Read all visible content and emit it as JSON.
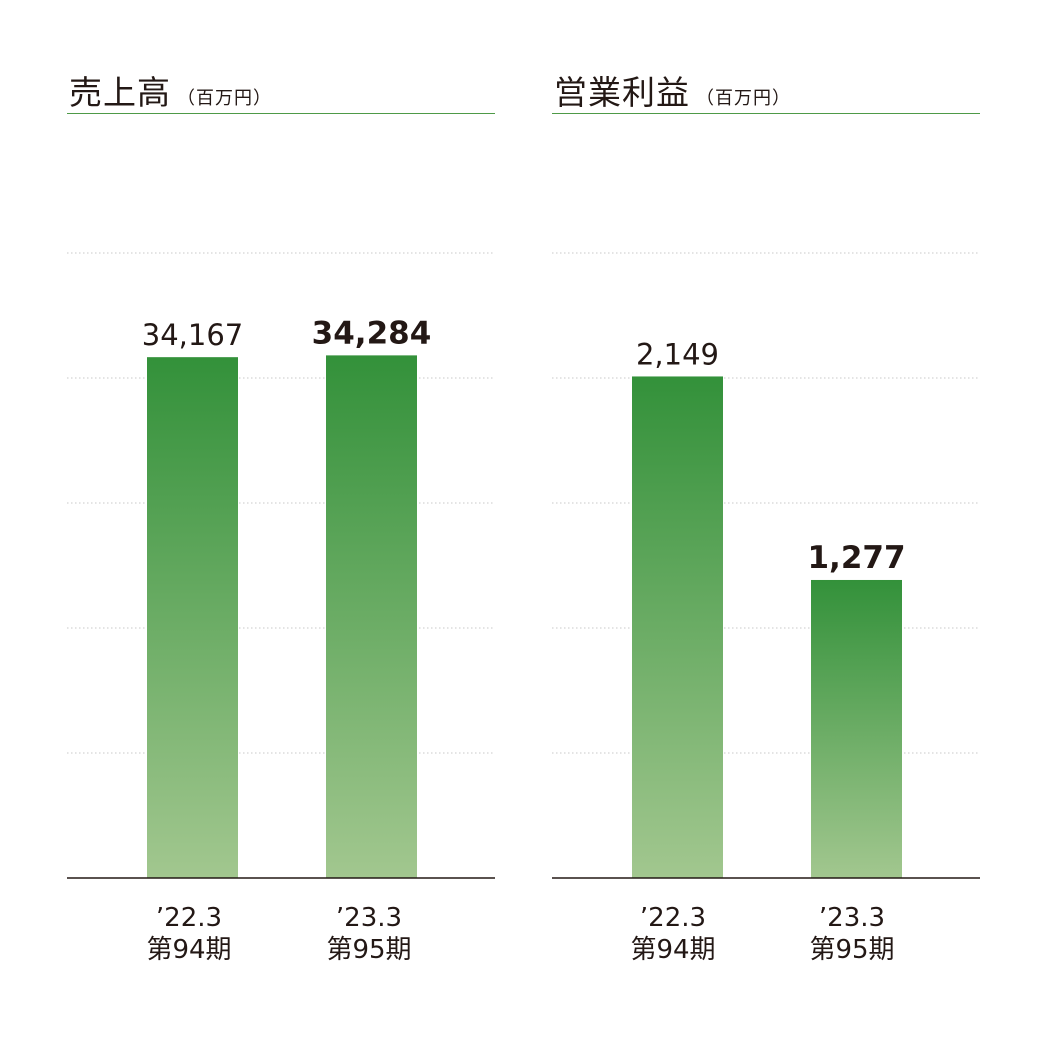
{
  "colors": {
    "bar_top": "#33913a",
    "bar_bottom": "#a2c78f",
    "axis": "#231815",
    "grid": "#c8c8c8",
    "title_rule": "#4e9a47"
  },
  "chart_data": [
    {
      "type": "bar",
      "title": "売上高",
      "unit": "（百万円）",
      "categories": [
        "’22.3",
        "’23.3"
      ],
      "category_sublabels": [
        "第94期",
        "第95期"
      ],
      "values": [
        34167,
        34284
      ],
      "value_labels": [
        "34,167",
        "34,284"
      ],
      "highlight_index": 1,
      "gridlines": 5,
      "ylim": [
        0,
        41000
      ]
    },
    {
      "type": "bar",
      "title": "営業利益",
      "unit": "（百万円）",
      "categories": [
        "’22.3",
        "’23.3"
      ],
      "category_sublabels": [
        "第94期",
        "第95期"
      ],
      "values": [
        2149,
        1277
      ],
      "value_labels": [
        "2,149",
        "1,277"
      ],
      "highlight_index": 1,
      "gridlines": 5,
      "ylim": [
        0,
        2678
      ]
    }
  ]
}
